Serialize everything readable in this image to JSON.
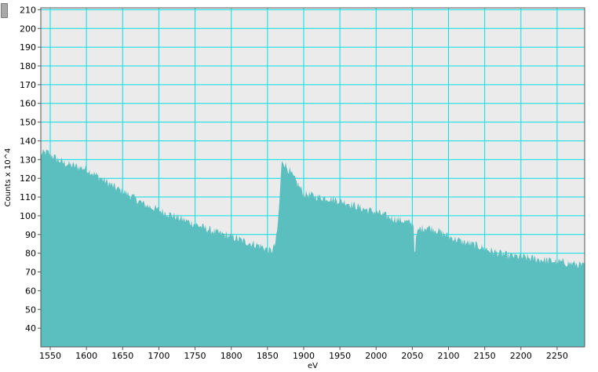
{
  "chart_data": {
    "type": "area",
    "title": "",
    "xlabel": "eV",
    "ylabel": "Counts x 10^4",
    "xlim": [
      1537,
      2288
    ],
    "ylim": [
      30,
      211
    ],
    "x_ticks": [
      1550,
      1600,
      1650,
      1700,
      1750,
      1800,
      1850,
      1900,
      1950,
      2000,
      2050,
      2100,
      2150,
      2200,
      2250
    ],
    "y_ticks": [
      40,
      50,
      60,
      70,
      80,
      90,
      100,
      110,
      120,
      130,
      140,
      150,
      160,
      170,
      180,
      190,
      200,
      210
    ],
    "grid": true,
    "fill_color": "#5cbfbf",
    "grid_color": "#00e0e8",
    "plot_background": "#ebebeb",
    "series": [
      {
        "x": [
          1537,
          1545,
          1550,
          1560,
          1570,
          1580,
          1590,
          1600,
          1620,
          1640,
          1660,
          1680,
          1700,
          1720,
          1740,
          1760,
          1780,
          1800,
          1820,
          1840,
          1850,
          1855,
          1860,
          1863,
          1866,
          1868,
          1870,
          1875,
          1880,
          1890,
          1900,
          1920,
          1940,
          1960,
          1980,
          2000,
          2020,
          2040,
          2048,
          2052,
          2053,
          2056,
          2060,
          2070,
          2080,
          2090,
          2100,
          2120,
          2140,
          2160,
          2180,
          2200,
          2220,
          2240,
          2260,
          2280,
          2288
        ],
        "values": [
          133,
          134,
          133,
          130,
          128,
          127,
          126,
          125,
          120,
          115,
          111,
          106,
          103,
          100,
          97,
          94,
          91,
          89,
          86,
          84,
          82,
          81,
          84,
          90,
          104,
          118,
          130,
          127,
          124,
          118,
          112,
          110,
          109,
          107,
          104,
          102,
          99,
          97,
          96,
          95,
          79,
          90,
          93,
          94,
          93,
          91,
          89,
          86,
          84,
          81,
          79,
          78,
          77,
          76,
          75,
          74,
          73
        ]
      }
    ]
  }
}
